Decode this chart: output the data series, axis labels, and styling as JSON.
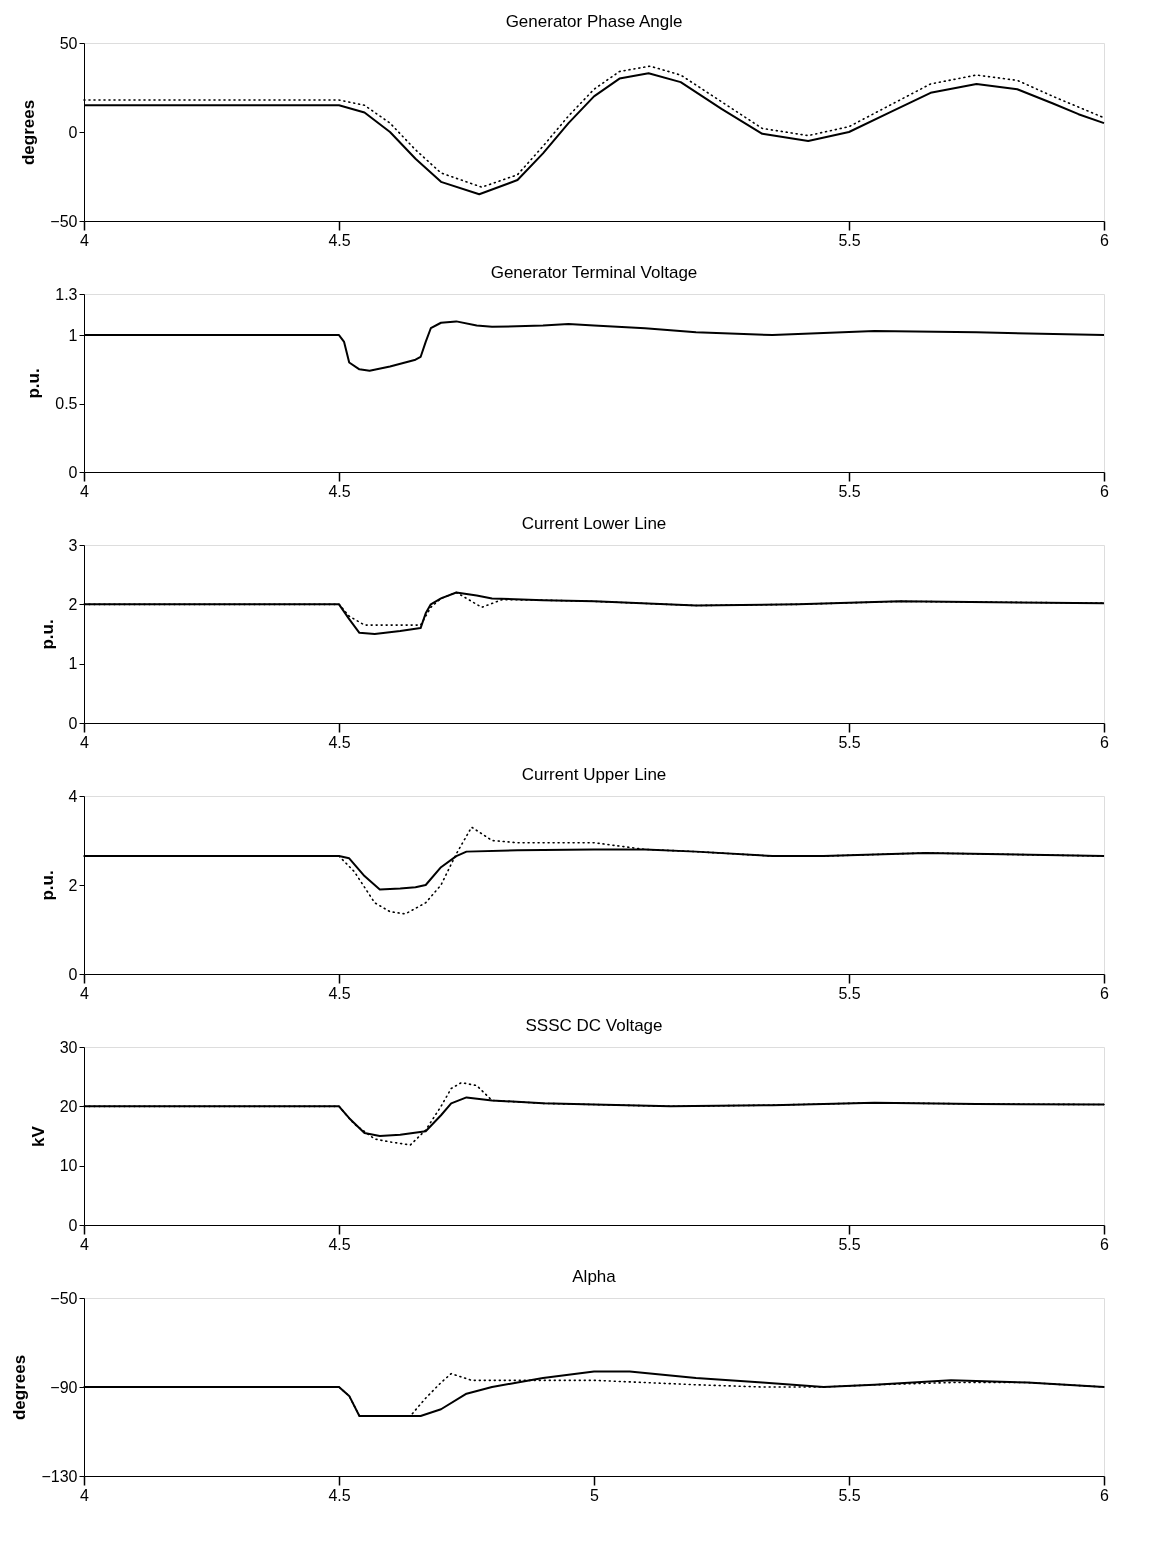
{
  "chart_data": [
    {
      "type": "line",
      "title": "Generator Phase Angle",
      "ylabel": "degrees",
      "xlim": [
        4,
        6
      ],
      "xticks": [
        4,
        4.5,
        5.5,
        6
      ],
      "ylim": [
        -50,
        50
      ],
      "yticks": [
        -50,
        0,
        50
      ],
      "grid": false,
      "series": [
        {
          "color": "#000000",
          "line_style": "solid",
          "x": [
            4,
            4.5,
            4.55,
            4.6,
            4.65,
            4.7,
            4.775,
            4.85,
            4.9,
            4.95,
            5.0,
            5.05,
            5.107,
            5.17,
            5.25,
            5.33,
            5.42,
            5.5,
            5.58,
            5.66,
            5.75,
            5.83,
            5.9,
            5.95,
            6
          ],
          "values": [
            15,
            15,
            11,
            0,
            -15,
            -28,
            -35,
            -27,
            -12,
            5,
            20,
            30,
            33,
            28,
            13,
            -1,
            -5,
            0,
            11,
            22,
            27,
            24,
            16,
            10,
            5
          ]
        },
        {
          "color": "#000000",
          "line_style": "dotted",
          "x": [
            4,
            4.5,
            4.55,
            4.6,
            4.65,
            4.7,
            4.78,
            4.85,
            4.9,
            4.95,
            5.0,
            5.05,
            5.11,
            5.17,
            5.25,
            5.33,
            5.42,
            5.5,
            5.58,
            5.66,
            5.75,
            5.83,
            5.9,
            5.95,
            6
          ],
          "values": [
            18,
            18,
            15,
            5,
            -10,
            -23,
            -31,
            -24,
            -8,
            9,
            24,
            34,
            37,
            32,
            17,
            2,
            -2,
            3,
            15,
            27,
            32,
            29,
            20,
            14,
            8
          ]
        }
      ]
    },
    {
      "type": "line",
      "title": "Generator Terminal Voltage",
      "ylabel": "p.u.",
      "xlim": [
        4,
        6
      ],
      "xticks": [
        4,
        4.5,
        5.5,
        6
      ],
      "ylim": [
        0,
        1.3
      ],
      "yticks": [
        0,
        0.5,
        1,
        1.3
      ],
      "grid": false,
      "series": [
        {
          "color": "#000000",
          "line_style": "solid",
          "x": [
            4,
            4.5,
            4.51,
            4.52,
            4.54,
            4.56,
            4.6,
            4.65,
            4.66,
            4.67,
            4.68,
            4.7,
            4.73,
            4.77,
            4.8,
            4.9,
            4.95,
            5.0,
            5.1,
            5.2,
            5.35,
            5.55,
            5.75,
            6
          ],
          "values": [
            1,
            1,
            0.95,
            0.8,
            0.75,
            0.74,
            0.77,
            0.82,
            0.84,
            0.95,
            1.05,
            1.09,
            1.1,
            1.07,
            1.06,
            1.07,
            1.08,
            1.07,
            1.05,
            1.02,
            1.0,
            1.03,
            1.02,
            1.0
          ]
        }
      ]
    },
    {
      "type": "line",
      "title": "Current Lower Line",
      "ylabel": "p.u.",
      "xlim": [
        4,
        6
      ],
      "xticks": [
        4,
        4.5,
        5.5,
        6
      ],
      "ylim": [
        0,
        3
      ],
      "yticks": [
        0,
        1,
        2,
        3
      ],
      "grid": false,
      "series": [
        {
          "color": "#000000",
          "line_style": "solid",
          "x": [
            4,
            4.5,
            4.52,
            4.54,
            4.57,
            4.62,
            4.66,
            4.67,
            4.68,
            4.7,
            4.73,
            4.77,
            4.8,
            4.9,
            5.0,
            5.2,
            5.4,
            5.6,
            6
          ],
          "values": [
            2,
            2,
            1.75,
            1.52,
            1.5,
            1.55,
            1.6,
            1.85,
            2.0,
            2.1,
            2.2,
            2.15,
            2.1,
            2.07,
            2.05,
            1.98,
            2.0,
            2.05,
            2.02
          ]
        },
        {
          "color": "#000000",
          "line_style": "dotted",
          "x": [
            4,
            4.5,
            4.52,
            4.55,
            4.6,
            4.66,
            4.68,
            4.7,
            4.73,
            4.78,
            4.82,
            4.9,
            5.0,
            5.2,
            5.4,
            5.6,
            6
          ],
          "values": [
            2,
            2,
            1.8,
            1.65,
            1.65,
            1.65,
            1.95,
            2.1,
            2.2,
            1.95,
            2.08,
            2.07,
            2.05,
            1.98,
            2.0,
            2.05,
            2.02
          ]
        }
      ]
    },
    {
      "type": "line",
      "title": "Current Upper Line",
      "ylabel": "p.u.",
      "xlim": [
        4,
        6
      ],
      "xticks": [
        4,
        4.5,
        5.5,
        6
      ],
      "ylim": [
        0,
        4
      ],
      "yticks": [
        0,
        2,
        4
      ],
      "grid": false,
      "series": [
        {
          "color": "#000000",
          "line_style": "solid",
          "x": [
            4,
            4.5,
            4.52,
            4.55,
            4.58,
            4.62,
            4.65,
            4.67,
            4.7,
            4.73,
            4.75,
            4.85,
            5.0,
            5.1,
            5.2,
            5.35,
            5.45,
            5.65,
            6
          ],
          "values": [
            2.65,
            2.65,
            2.6,
            2.2,
            1.9,
            1.92,
            1.95,
            2.0,
            2.4,
            2.65,
            2.75,
            2.78,
            2.8,
            2.8,
            2.75,
            2.65,
            2.65,
            2.72,
            2.65
          ]
        },
        {
          "color": "#000000",
          "line_style": "dotted",
          "x": [
            4,
            4.5,
            4.53,
            4.57,
            4.6,
            4.63,
            4.67,
            4.7,
            4.73,
            4.76,
            4.8,
            4.85,
            5.0,
            5.1,
            5.2,
            5.35,
            5.45,
            5.65,
            6
          ],
          "values": [
            2.65,
            2.65,
            2.3,
            1.6,
            1.4,
            1.35,
            1.6,
            2.0,
            2.7,
            3.3,
            3.0,
            2.95,
            2.95,
            2.8,
            2.75,
            2.65,
            2.65,
            2.72,
            2.65
          ]
        }
      ]
    },
    {
      "type": "line",
      "title": "SSSC DC Voltage",
      "ylabel": "kV",
      "xlim": [
        4,
        6
      ],
      "xticks": [
        4,
        4.5,
        5.5,
        6
      ],
      "ylim": [
        0,
        30
      ],
      "yticks": [
        0,
        10,
        20,
        30
      ],
      "grid": false,
      "series": [
        {
          "color": "#000000",
          "line_style": "solid",
          "x": [
            4,
            4.5,
            4.52,
            4.55,
            4.58,
            4.62,
            4.67,
            4.7,
            4.72,
            4.75,
            4.8,
            4.9,
            5.0,
            5.15,
            5.35,
            5.55,
            5.75,
            6
          ],
          "values": [
            20,
            20,
            18,
            15.5,
            15,
            15.2,
            15.8,
            18.5,
            20.5,
            21.5,
            21,
            20.5,
            20.3,
            20,
            20.2,
            20.6,
            20.4,
            20.3
          ]
        },
        {
          "color": "#000000",
          "line_style": "dotted",
          "x": [
            4,
            4.5,
            4.53,
            4.57,
            4.6,
            4.64,
            4.67,
            4.7,
            4.72,
            4.74,
            4.77,
            4.8,
            4.9,
            5.0,
            5.15,
            5.35,
            5.55,
            5.75,
            6
          ],
          "values": [
            20,
            20,
            17,
            14.5,
            14,
            13.5,
            16,
            20,
            23,
            24,
            23.5,
            21,
            20.5,
            20.3,
            20,
            20.2,
            20.6,
            20.4,
            20.3
          ]
        }
      ]
    },
    {
      "type": "line",
      "title": "Alpha",
      "ylabel": "degrees",
      "xlim": [
        4,
        6
      ],
      "xticks": [
        4,
        4.5,
        5,
        5.5,
        6
      ],
      "ylim": [
        -130,
        -50
      ],
      "yticks": [
        -130,
        -90,
        -50
      ],
      "grid": false,
      "series": [
        {
          "color": "#000000",
          "line_style": "solid",
          "x": [
            4,
            4.5,
            4.52,
            4.54,
            4.6,
            4.66,
            4.7,
            4.75,
            4.8,
            4.85,
            4.9,
            5.0,
            5.07,
            5.2,
            5.33,
            5.45,
            5.55,
            5.7,
            5.85,
            6
          ],
          "values": [
            -90,
            -90,
            -94,
            -103,
            -103,
            -103,
            -100,
            -93,
            -90,
            -88,
            -86,
            -83,
            -83,
            -86,
            -88,
            -90,
            -89,
            -87,
            -88,
            -90
          ]
        },
        {
          "color": "#000000",
          "line_style": "dotted",
          "x": [
            4,
            4.5,
            4.52,
            4.54,
            4.6,
            4.64,
            4.67,
            4.7,
            4.72,
            4.76,
            4.8,
            4.9,
            5.0,
            5.2,
            5.33,
            5.45,
            5.55,
            5.7,
            5.85,
            6
          ],
          "values": [
            -90,
            -90,
            -94,
            -103,
            -103,
            -103,
            -95,
            -88,
            -84,
            -87,
            -87,
            -87,
            -87,
            -89,
            -90,
            -90,
            -89,
            -88,
            -88,
            -90
          ]
        }
      ]
    }
  ]
}
